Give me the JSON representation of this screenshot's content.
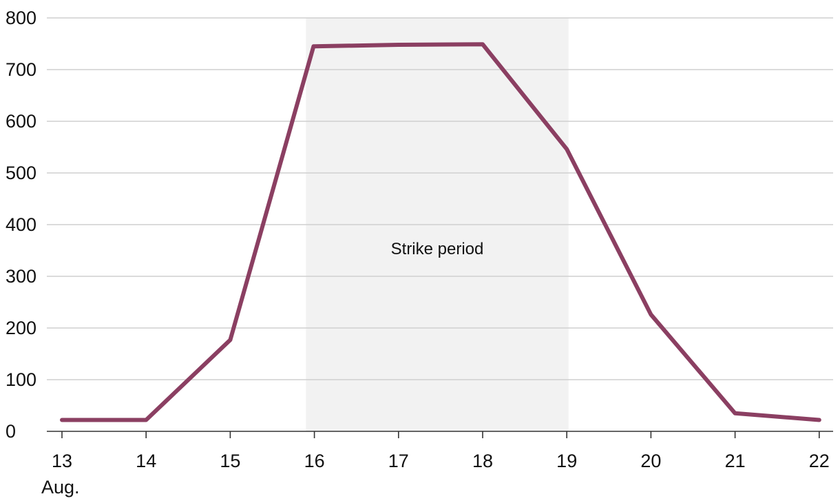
{
  "chart_data": {
    "type": "line",
    "title": "",
    "xlabel": "",
    "ylabel": "",
    "x": [
      13,
      14,
      15,
      16,
      17,
      18,
      19,
      20,
      21,
      22
    ],
    "x_tick_labels": [
      "13",
      "14",
      "15",
      "16",
      "17",
      "18",
      "19",
      "20",
      "21",
      "22"
    ],
    "x_month_label": "Aug.",
    "ylim": [
      0,
      800
    ],
    "y_ticks": [
      0,
      100,
      200,
      300,
      400,
      500,
      600,
      700,
      800
    ],
    "grid": true,
    "series": [
      {
        "x": [
          13,
          14,
          15,
          15.99,
          17,
          18,
          19,
          20,
          21,
          22
        ],
        "values": [
          22,
          22,
          177,
          745,
          748,
          749,
          546,
          226,
          35,
          22
        ]
      }
    ],
    "shaded_region": {
      "from": 15.9,
      "to": 19.02,
      "label": "Strike period"
    },
    "colors": {
      "line": "#8b3f62",
      "shade": "#f2f2f2"
    }
  }
}
